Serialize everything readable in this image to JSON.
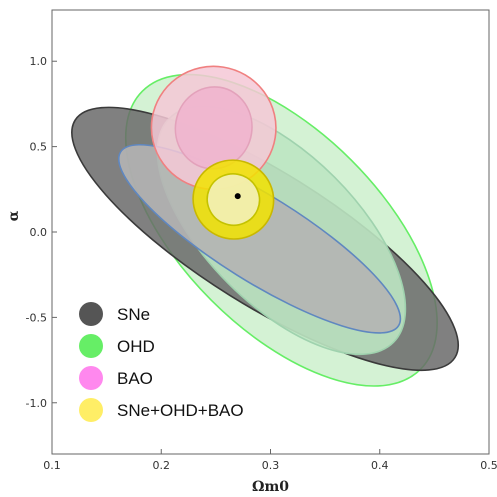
{
  "chart_data": {
    "type": "contour",
    "xlabel": "Ωm0",
    "ylabel": "α",
    "xlim": [
      0.1,
      0.5
    ],
    "ylim": [
      -1.3,
      1.3
    ],
    "x_ticks": [
      {
        "value": 0.1,
        "label": "0.1"
      },
      {
        "value": 0.2,
        "label": "0.2"
      },
      {
        "value": 0.3,
        "label": "0.3"
      },
      {
        "value": 0.4,
        "label": "0.4"
      },
      {
        "value": 0.5,
        "label": "0.5"
      }
    ],
    "y_ticks": [
      {
        "value": 1.0,
        "label": "1.0"
      },
      {
        "value": 0.5,
        "label": "0.5"
      },
      {
        "value": 0.0,
        "label": "0.0"
      },
      {
        "value": -0.5,
        "label": "-0.5"
      },
      {
        "value": -1.0,
        "label": "-1.0"
      }
    ],
    "grid": false,
    "legend_position": "bottom-left",
    "series": [
      {
        "name": "SNe",
        "color": "#555555",
        "contours": [
          {
            "level": "outer",
            "center": [
              0.295,
              -0.04
            ],
            "rx": 0.205,
            "ry": 0.39,
            "angle": 32,
            "fill": "#6a6a6a",
            "stroke": "#3a3a3a"
          },
          {
            "level": "inner",
            "center": [
              0.29,
              -0.04
            ],
            "rx": 0.15,
            "ry": 0.25,
            "angle": 32,
            "fill": "#b4b4b4",
            "stroke": "#5f87c0"
          }
        ]
      },
      {
        "name": "OHD",
        "color": "#66ee66",
        "contours": [
          {
            "level": "outer",
            "center": [
              0.31,
              0.01
            ],
            "rx": 0.18,
            "ry": 0.58,
            "angle": 45,
            "fill": "#ccf0cc",
            "stroke": "#66ee66"
          },
          {
            "level": "inner",
            "center": [
              0.31,
              0.01
            ],
            "rx": 0.145,
            "ry": 0.44,
            "angle": 45,
            "fill": "#bde5c2",
            "stroke": "#9fd2ae"
          }
        ]
      },
      {
        "name": "BAO",
        "color": "#ff88ee",
        "contours": [
          {
            "level": "outer",
            "center": [
              0.248,
              0.61
            ],
            "rx": 0.057,
            "ry": 0.36,
            "angle": 9,
            "fill": "#f4c8d6",
            "stroke": "#f08080"
          },
          {
            "level": "inner",
            "center": [
              0.248,
              0.61
            ],
            "rx": 0.035,
            "ry": 0.24,
            "angle": 9,
            "fill": "#f0b5ce",
            "stroke": "#e3a2bb"
          }
        ]
      },
      {
        "name": "SNe+OHD+BAO",
        "color": "#ffee66",
        "contours": [
          {
            "level": "outer",
            "center": [
              0.266,
              0.19
            ],
            "rx": 0.037,
            "ry": 0.23,
            "angle": 22,
            "fill": "#f2e300",
            "stroke": "#c9b800"
          },
          {
            "level": "inner",
            "center": [
              0.266,
              0.19
            ],
            "rx": 0.024,
            "ry": 0.15,
            "angle": 22,
            "fill": "#f3f0b8",
            "stroke": "#c4c200"
          }
        ]
      }
    ],
    "best_fit_point": {
      "x": 0.27,
      "y": 0.21
    }
  }
}
